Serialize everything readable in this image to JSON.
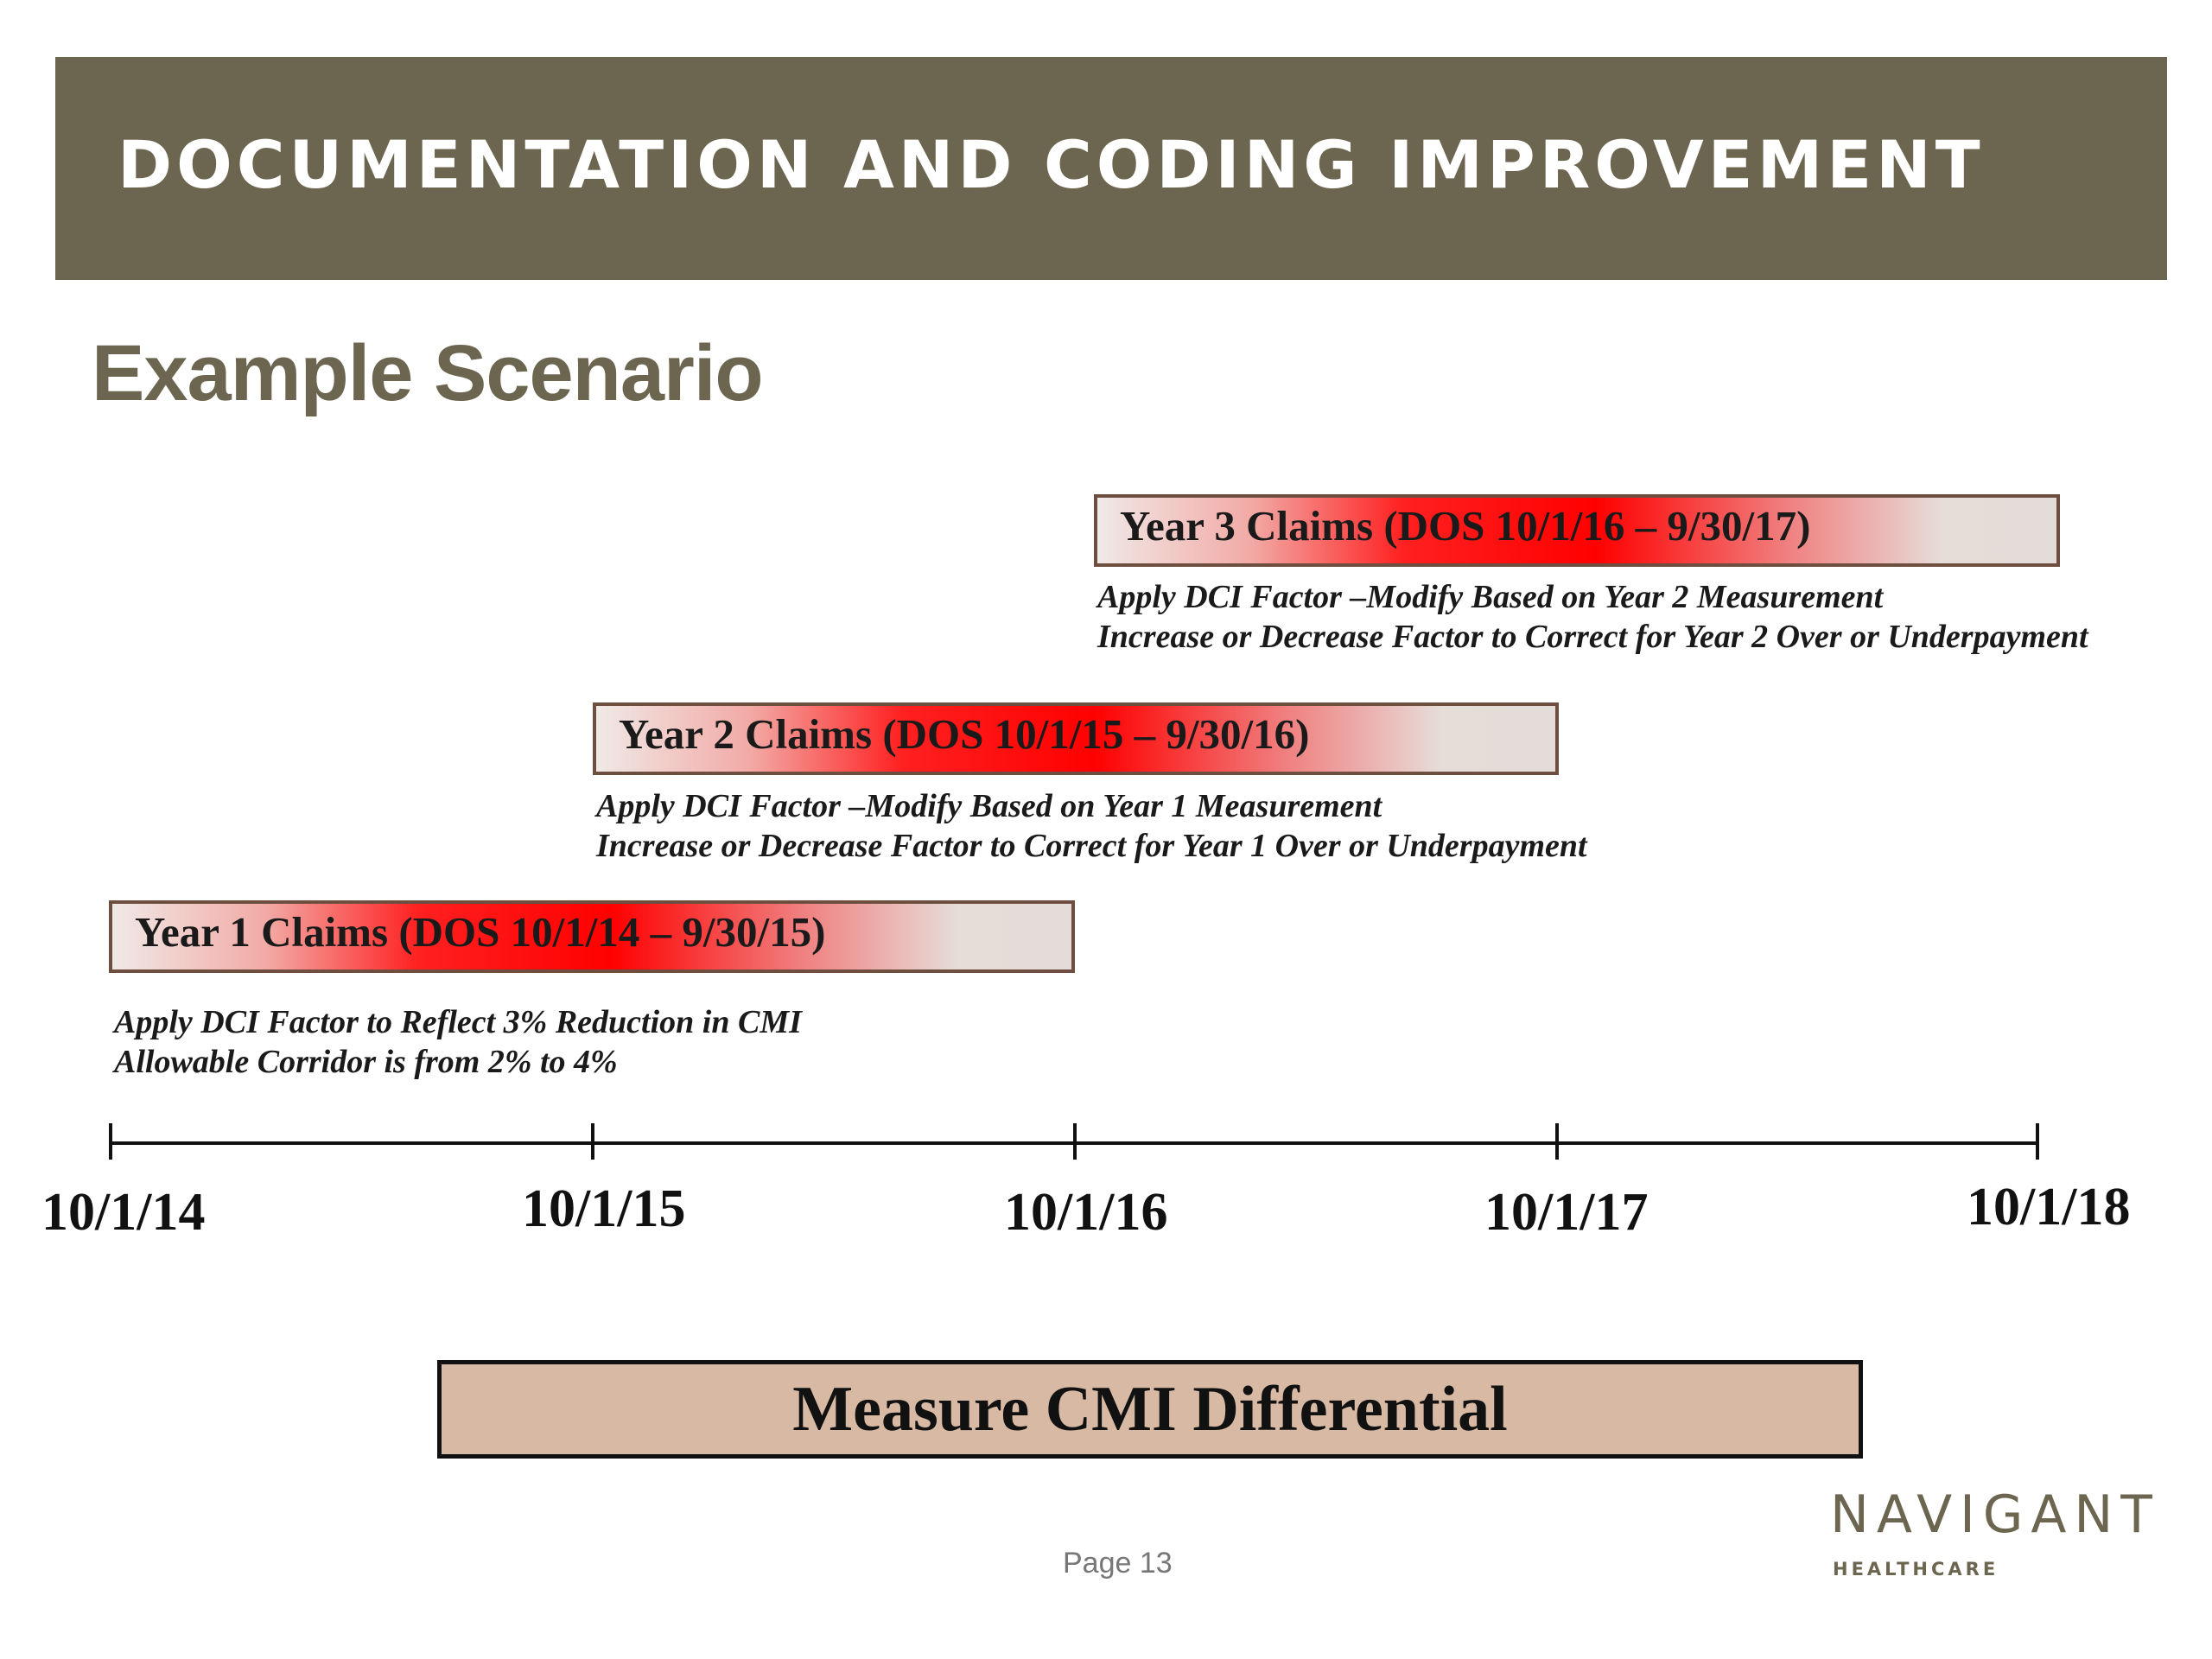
{
  "header": {
    "title": "DOCUMENTATION AND CODING IMPROVEMENT"
  },
  "subtitle": "Example Scenario",
  "claims": [
    {
      "label": "Year 3 Claims (DOS 10/1/16 – 9/30/17)",
      "notes": [
        "Apply DCI Factor –Modify Based on Year 2 Measurement",
        "Increase or Decrease Factor to Correct for Year 2 Over or Underpayment"
      ]
    },
    {
      "label": "Year 2 Claims (DOS 10/1/15 – 9/30/16)",
      "notes": [
        "Apply DCI Factor –Modify Based on Year 1 Measurement",
        "Increase or Decrease Factor to Correct for Year 1 Over or Underpayment"
      ]
    },
    {
      "label": "Year 1 Claims (DOS 10/1/14 – 9/30/15)",
      "notes": [
        "Apply DCI Factor to Reflect 3% Reduction in CMI",
        "Allowable Corridor is from 2% to 4%"
      ]
    }
  ],
  "timeline": {
    "ticks": [
      "10/1/14",
      "10/1/15",
      "10/1/16",
      "10/1/17",
      "10/1/18"
    ]
  },
  "measure": {
    "label": "Measure CMI Differential"
  },
  "footer": {
    "page": "Page 13"
  },
  "logo": {
    "name": "NAVIGANT",
    "sub": "HEALTHCARE"
  },
  "colors": {
    "header_bg": "#6c6650",
    "bar_red": "#ff0000",
    "measure_bg": "#d8b9a4"
  }
}
